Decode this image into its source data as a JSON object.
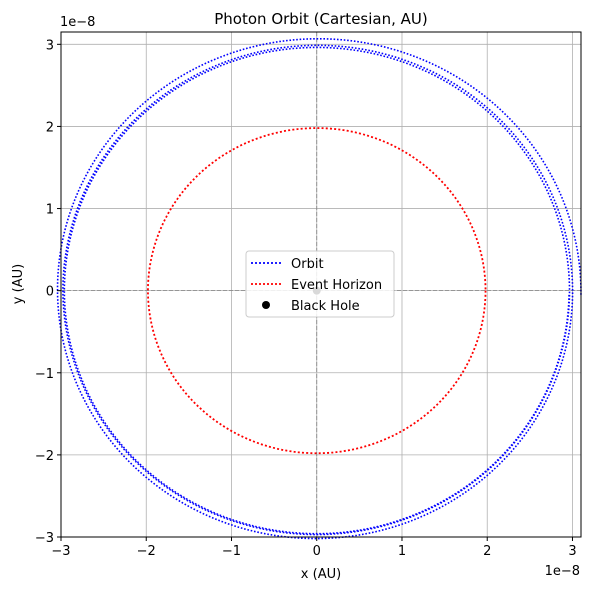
{
  "chart_data": {
    "type": "line",
    "title": "Photon Orbit (Cartesian, AU)",
    "xlabel": "x (AU)",
    "ylabel": "y (AU)",
    "x_offset_label": "1e−8",
    "y_offset_label": "1e−8",
    "xlim": [
      -3e-08,
      3.1e-08
    ],
    "ylim": [
      -3e-08,
      3.15e-08
    ],
    "x_ticks": [
      -3e-08,
      -2e-08,
      -1e-08,
      0,
      1e-08,
      2e-08,
      3e-08
    ],
    "x_tick_labels": [
      "−3",
      "−2",
      "−1",
      "0",
      "1",
      "2",
      "3"
    ],
    "y_ticks": [
      -3e-08,
      -2e-08,
      -1e-08,
      0,
      1e-08,
      2e-08,
      3e-08
    ],
    "y_tick_labels": [
      "−3",
      "−2",
      "−1",
      "0",
      "1",
      "2",
      "3"
    ],
    "grid": true,
    "legend_position": "center",
    "series": [
      {
        "name": "Orbit",
        "kind": "spiral",
        "color": "#0000ff",
        "style": "dotted",
        "start": [
          3.1e-08,
          -5e-10
        ],
        "r_start": 3.1e-08,
        "r_end": 2.96e-08,
        "turns": 3
      },
      {
        "name": "Event Horizon",
        "kind": "circle",
        "color": "#ff0000",
        "style": "dotted",
        "center": [
          0,
          0
        ],
        "radius": 1.98e-08
      },
      {
        "name": "Black Hole",
        "kind": "point",
        "color": "#000000",
        "x": 0,
        "y": 0
      }
    ],
    "reference_lines": [
      {
        "axis": "x",
        "value": 0,
        "color": "#808080",
        "style": "dashed"
      },
      {
        "axis": "y",
        "value": 0,
        "color": "#808080",
        "style": "dashed"
      }
    ]
  }
}
